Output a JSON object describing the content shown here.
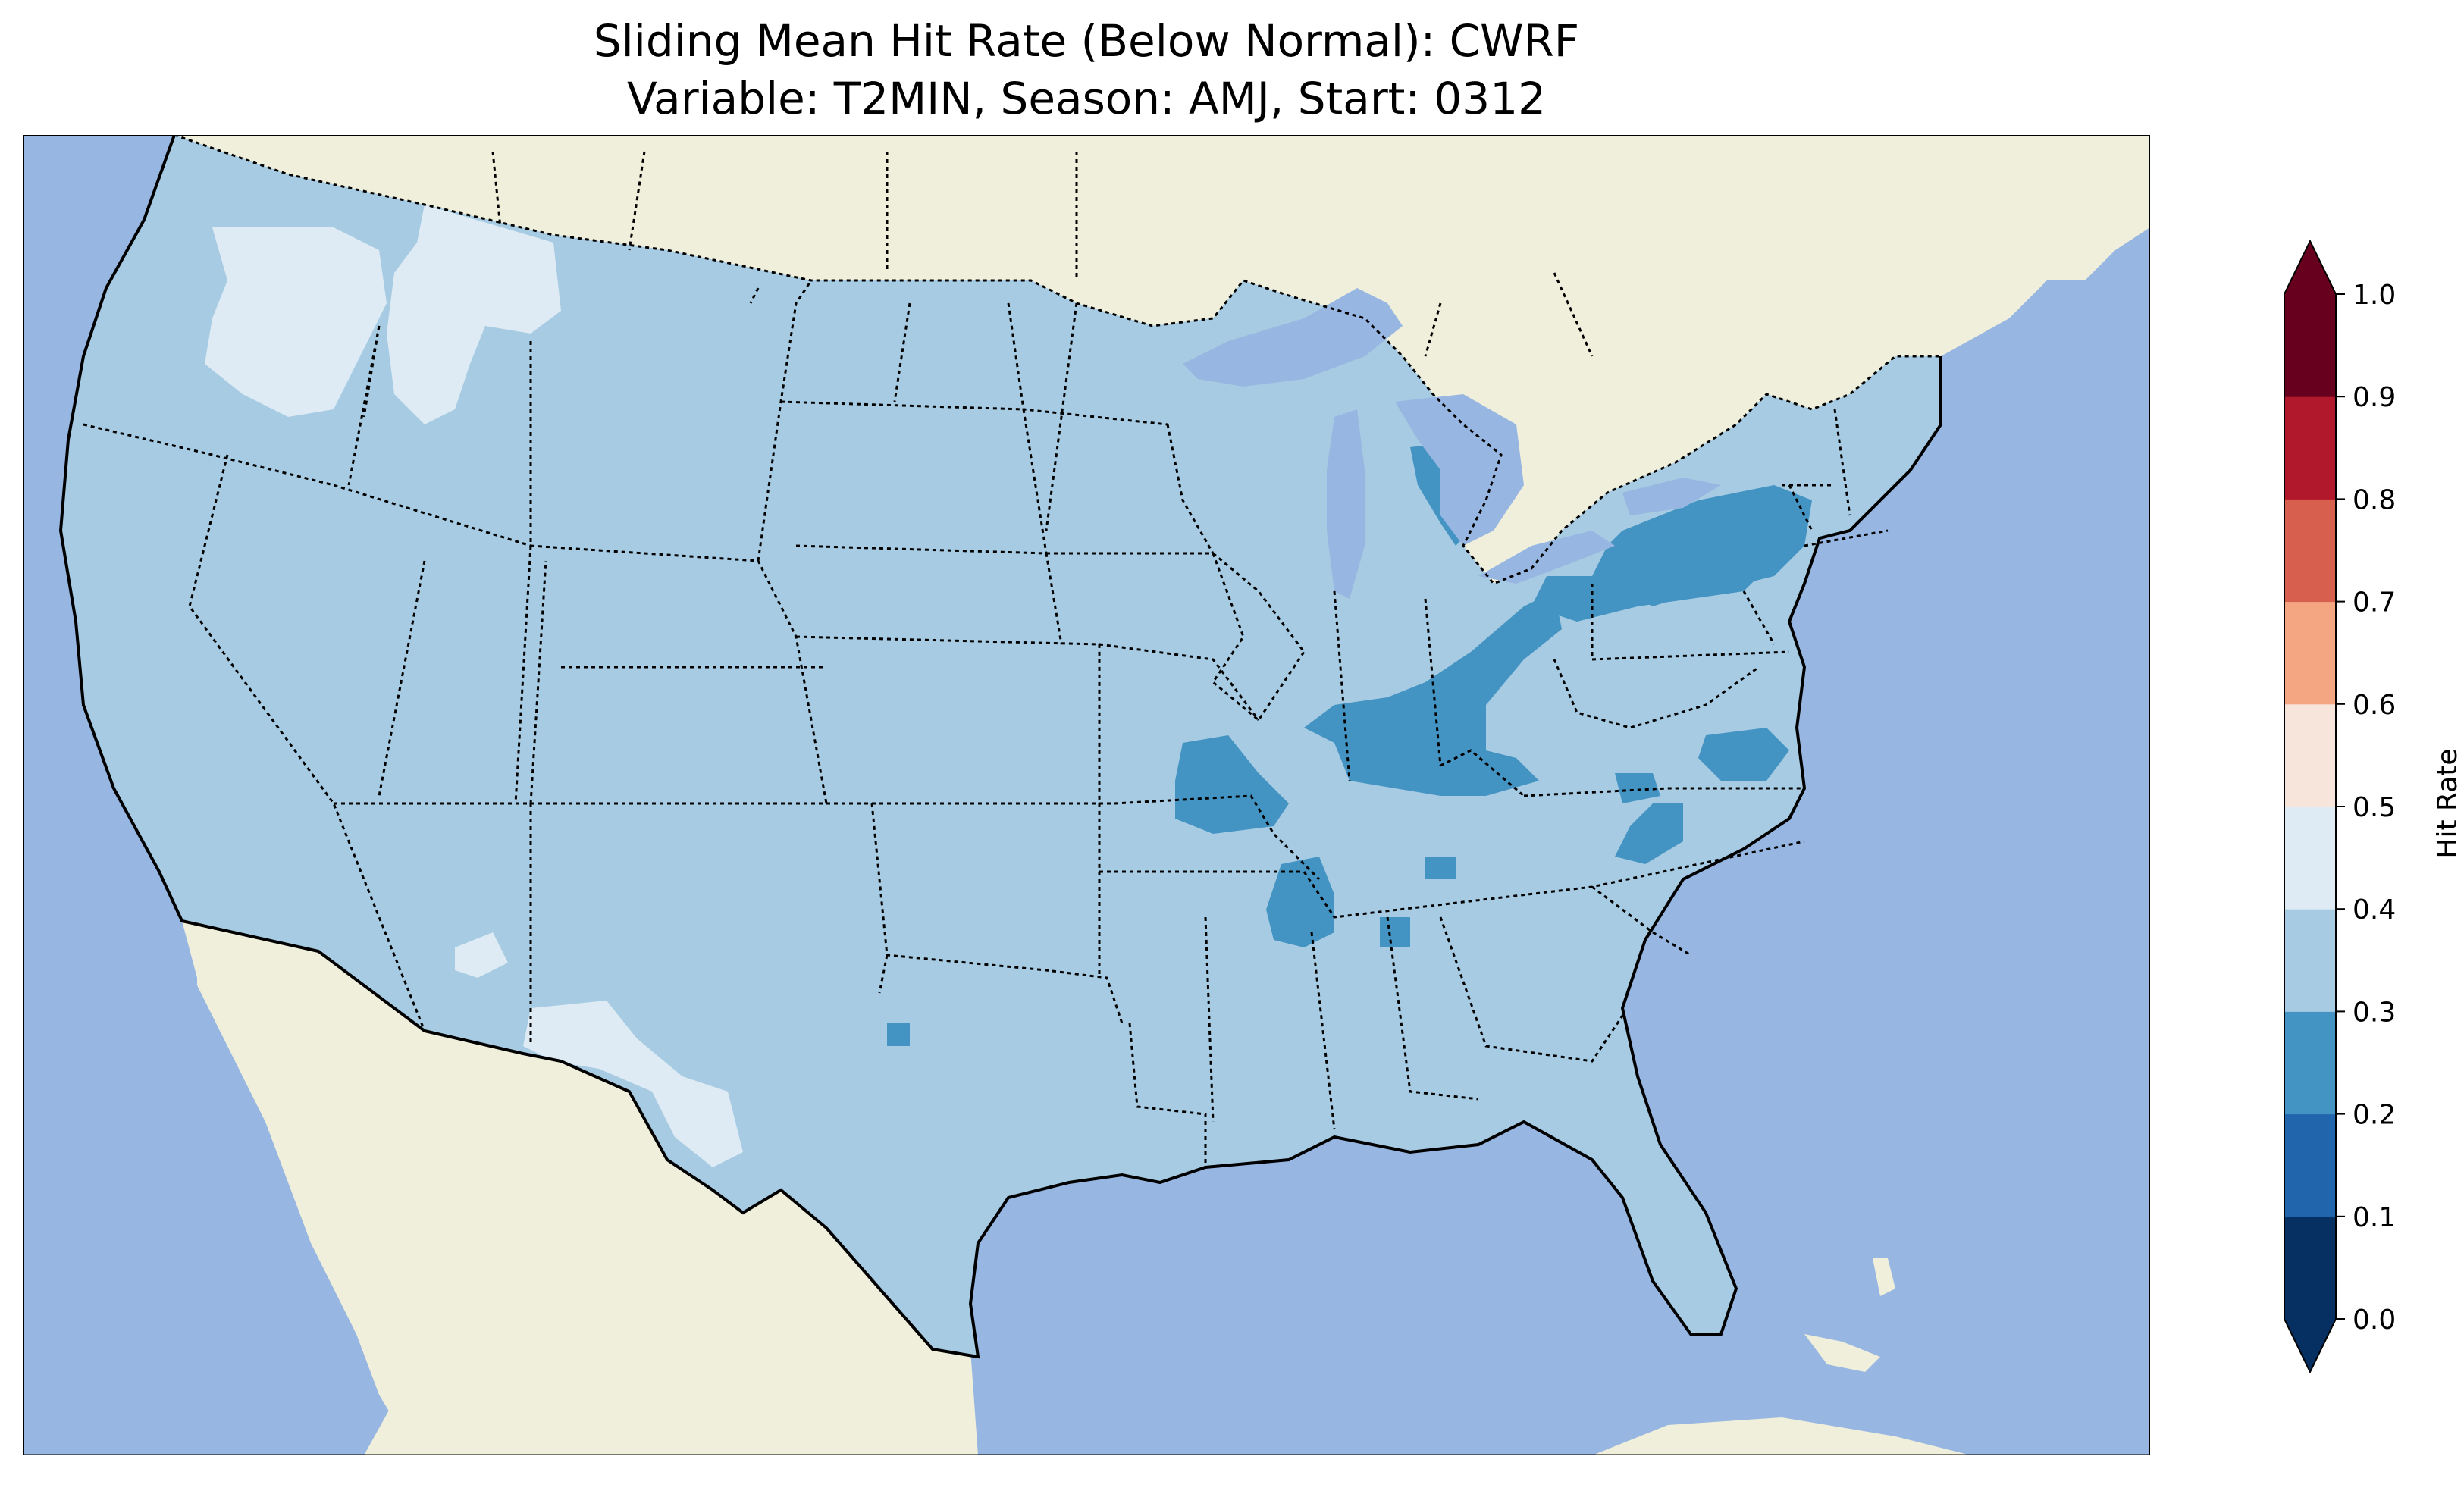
{
  "title": {
    "line1": "Sliding Mean Hit Rate (Below Normal): CWRF",
    "line2": "Variable: T2MIN, Season: AMJ, Start: 0312"
  },
  "colors": {
    "ocean": "#97b6e1",
    "land": "#efefdb",
    "lake": "#97b6e1",
    "coast": "#000000"
  },
  "colorbar": {
    "label": "Hit Rate",
    "ticks": [
      "0.0",
      "0.1",
      "0.2",
      "0.3",
      "0.4",
      "0.5",
      "0.6",
      "0.7",
      "0.8",
      "0.9",
      "1.0"
    ],
    "bins": [
      {
        "range": [
          0.0,
          0.1
        ],
        "color": "#053061"
      },
      {
        "range": [
          0.1,
          0.2
        ],
        "color": "#2166ac"
      },
      {
        "range": [
          0.2,
          0.3
        ],
        "color": "#4393c3"
      },
      {
        "range": [
          0.3,
          0.4
        ],
        "color": "#a6cbe2"
      },
      {
        "range": [
          0.4,
          0.5
        ],
        "color": "#deebf4"
      },
      {
        "range": [
          0.5,
          0.6
        ],
        "color": "#f7e4da"
      },
      {
        "range": [
          0.6,
          0.7
        ],
        "color": "#f4a582"
      },
      {
        "range": [
          0.7,
          0.8
        ],
        "color": "#d6604d"
      },
      {
        "range": [
          0.8,
          0.9
        ],
        "color": "#b2182b"
      },
      {
        "range": [
          0.9,
          1.0
        ],
        "color": "#67001f"
      }
    ],
    "under_color": "#053061",
    "over_color": "#67001f",
    "extend": "both"
  },
  "map": {
    "region": "Contiguous United States",
    "dominant_hit_rate_bin": "0.3-0.4",
    "features": [
      "coastlines",
      "state borders",
      "country borders",
      "lakes"
    ]
  }
}
